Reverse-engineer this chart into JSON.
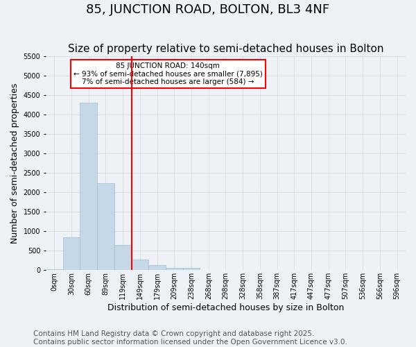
{
  "title": "85, JUNCTION ROAD, BOLTON, BL3 4NF",
  "subtitle": "Size of property relative to semi-detached houses in Bolton",
  "xlabel": "Distribution of semi-detached houses by size in Bolton",
  "ylabel": "Number of semi-detached properties",
  "bin_labels": [
    "0sqm",
    "30sqm",
    "60sqm",
    "89sqm",
    "119sqm",
    "149sqm",
    "179sqm",
    "209sqm",
    "238sqm",
    "268sqm",
    "298sqm",
    "328sqm",
    "358sqm",
    "387sqm",
    "417sqm",
    "447sqm",
    "477sqm",
    "507sqm",
    "536sqm",
    "566sqm",
    "596sqm"
  ],
  "bar_values": [
    30,
    840,
    4300,
    2230,
    650,
    270,
    130,
    60,
    55,
    0,
    0,
    0,
    0,
    0,
    0,
    0,
    0,
    0,
    0,
    0,
    0
  ],
  "bar_color": "#c5d8e8",
  "bar_edge_color": "#a0bdd0",
  "grid_color": "#d0d8e0",
  "background_color": "#eef2f7",
  "vline_pos": 5,
  "vline_color": "red",
  "annotation_text": "85 JUNCTION ROAD: 140sqm\n← 93% of semi-detached houses are smaller (7,895)\n7% of semi-detached houses are larger (584) →",
  "annotation_box_color": "white",
  "annotation_box_edge": "red",
  "ylim": [
    0,
    5500
  ],
  "yticks": [
    0,
    500,
    1000,
    1500,
    2000,
    2500,
    3000,
    3500,
    4000,
    4500,
    5000,
    5500
  ],
  "footer_text": "Contains HM Land Registry data © Crown copyright and database right 2025.\nContains public sector information licensed under the Open Government Licence v3.0.",
  "title_fontsize": 13,
  "subtitle_fontsize": 11,
  "axis_label_fontsize": 9,
  "tick_fontsize": 7,
  "footer_fontsize": 7.5
}
